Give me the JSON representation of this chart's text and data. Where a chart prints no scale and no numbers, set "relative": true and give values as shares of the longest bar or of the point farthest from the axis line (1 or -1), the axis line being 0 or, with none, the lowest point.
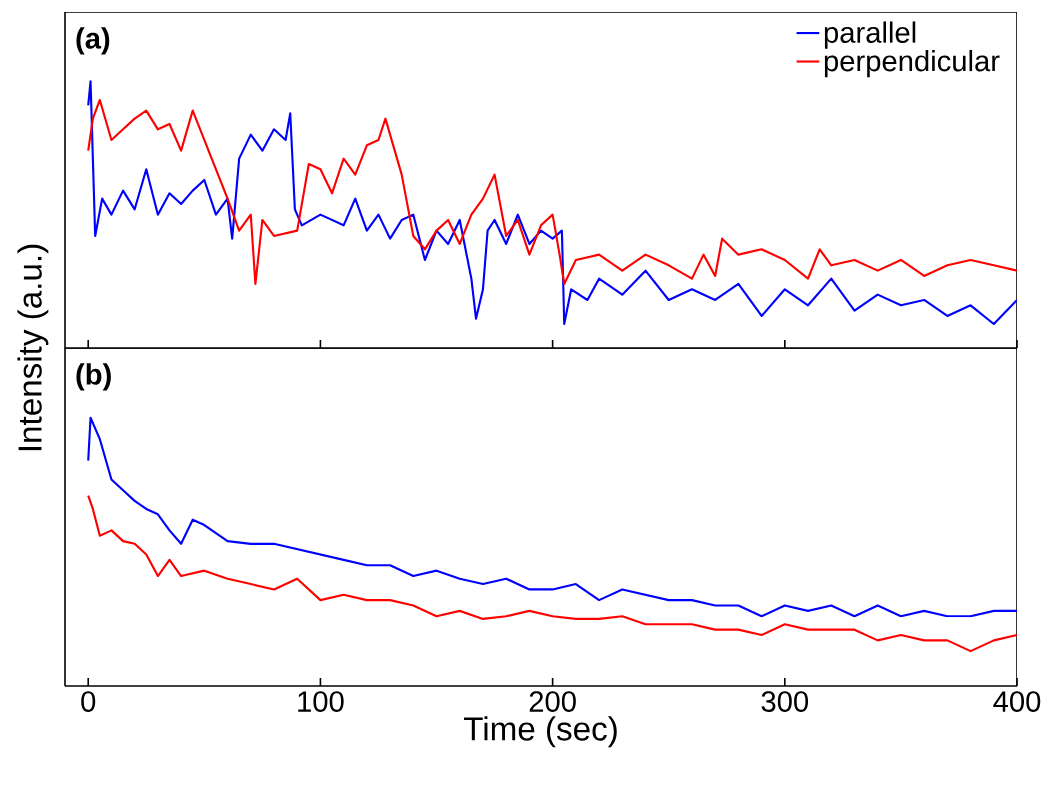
{
  "chart_data": [
    {
      "type": "line",
      "title": "(a)",
      "ylabel": "Intensity (a.u.)",
      "relative": true,
      "xlim": [
        -10,
        400
      ],
      "xticks": [
        0,
        100,
        200,
        300,
        400
      ],
      "tick_labels": false,
      "legend": "top right",
      "grid": false,
      "series": [
        {
          "name": "parallel",
          "color": "#0000ff",
          "x": [
            0,
            1,
            3,
            6,
            10,
            15,
            20,
            25,
            30,
            35,
            40,
            45,
            50,
            55,
            60,
            62,
            65,
            70,
            75,
            80,
            85,
            87,
            89,
            92,
            100,
            110,
            115,
            120,
            125,
            130,
            135,
            140,
            145,
            150,
            155,
            160,
            165,
            167,
            170,
            172,
            175,
            180,
            185,
            190,
            195,
            200,
            204,
            205,
            208,
            215,
            220,
            230,
            240,
            250,
            260,
            270,
            280,
            290,
            300,
            310,
            320,
            330,
            340,
            350,
            360,
            370,
            380,
            390,
            400
          ],
          "values": [
            0.91,
            1.0,
            0.42,
            0.56,
            0.5,
            0.59,
            0.52,
            0.67,
            0.5,
            0.58,
            0.54,
            0.59,
            0.63,
            0.5,
            0.56,
            0.41,
            0.71,
            0.8,
            0.74,
            0.82,
            0.78,
            0.88,
            0.52,
            0.46,
            0.5,
            0.46,
            0.56,
            0.44,
            0.5,
            0.41,
            0.48,
            0.5,
            0.33,
            0.44,
            0.39,
            0.48,
            0.26,
            0.11,
            0.22,
            0.44,
            0.48,
            0.39,
            0.5,
            0.39,
            0.44,
            0.41,
            0.44,
            0.09,
            0.22,
            0.18,
            0.26,
            0.2,
            0.29,
            0.18,
            0.22,
            0.18,
            0.24,
            0.12,
            0.22,
            0.16,
            0.26,
            0.14,
            0.2,
            0.16,
            0.18,
            0.12,
            0.16,
            0.09,
            0.18
          ]
        },
        {
          "name": "perpendicular",
          "color": "#ff0000",
          "x": [
            0,
            2,
            5,
            10,
            15,
            20,
            25,
            30,
            35,
            40,
            45,
            50,
            55,
            60,
            65,
            70,
            72,
            75,
            80,
            90,
            95,
            100,
            105,
            110,
            115,
            120,
            125,
            128,
            132,
            135,
            140,
            145,
            150,
            155,
            160,
            165,
            170,
            175,
            180,
            185,
            190,
            195,
            200,
            203,
            205,
            210,
            220,
            230,
            240,
            250,
            260,
            265,
            270,
            273,
            280,
            290,
            300,
            310,
            315,
            320,
            330,
            340,
            350,
            360,
            370,
            380,
            390,
            400
          ],
          "values": [
            0.74,
            0.86,
            0.93,
            0.78,
            0.82,
            0.86,
            0.89,
            0.82,
            0.84,
            0.74,
            0.89,
            0.78,
            0.67,
            0.56,
            0.44,
            0.5,
            0.24,
            0.48,
            0.42,
            0.44,
            0.69,
            0.67,
            0.58,
            0.71,
            0.65,
            0.76,
            0.78,
            0.86,
            0.74,
            0.65,
            0.42,
            0.37,
            0.44,
            0.48,
            0.39,
            0.5,
            0.56,
            0.65,
            0.42,
            0.48,
            0.35,
            0.46,
            0.5,
            0.35,
            0.24,
            0.33,
            0.35,
            0.29,
            0.35,
            0.31,
            0.26,
            0.35,
            0.27,
            0.41,
            0.35,
            0.37,
            0.33,
            0.26,
            0.37,
            0.31,
            0.33,
            0.29,
            0.33,
            0.27,
            0.31,
            0.33,
            0.31,
            0.29
          ]
        }
      ]
    },
    {
      "type": "line",
      "title": "(b)",
      "xlabel": "Time (sec)",
      "relative": true,
      "xlim": [
        -10,
        400
      ],
      "xticks": [
        0,
        100,
        200,
        300,
        400
      ],
      "tick_labels": "x",
      "grid": false,
      "series": [
        {
          "color": "#0000ff",
          "x": [
            0,
            1,
            5,
            10,
            15,
            20,
            25,
            30,
            35,
            40,
            45,
            50,
            60,
            70,
            80,
            90,
            100,
            110,
            120,
            130,
            140,
            150,
            160,
            170,
            180,
            190,
            200,
            210,
            220,
            230,
            240,
            250,
            260,
            270,
            280,
            290,
            300,
            310,
            320,
            330,
            340,
            350,
            360,
            370,
            380,
            390,
            400
          ],
          "values": [
            0.84,
            1.0,
            0.92,
            0.77,
            0.73,
            0.69,
            0.66,
            0.64,
            0.58,
            0.53,
            0.62,
            0.6,
            0.54,
            0.53,
            0.53,
            0.51,
            0.49,
            0.47,
            0.45,
            0.45,
            0.41,
            0.43,
            0.4,
            0.38,
            0.4,
            0.36,
            0.36,
            0.38,
            0.32,
            0.36,
            0.34,
            0.32,
            0.32,
            0.3,
            0.3,
            0.26,
            0.3,
            0.28,
            0.3,
            0.26,
            0.3,
            0.26,
            0.28,
            0.26,
            0.26,
            0.28,
            0.28
          ]
        },
        {
          "color": "#ff0000",
          "x": [
            0,
            2,
            5,
            10,
            15,
            20,
            25,
            30,
            35,
            40,
            50,
            60,
            70,
            80,
            90,
            100,
            110,
            120,
            130,
            140,
            150,
            160,
            170,
            180,
            190,
            200,
            210,
            220,
            230,
            240,
            250,
            260,
            270,
            280,
            290,
            300,
            310,
            320,
            330,
            340,
            350,
            360,
            370,
            380,
            390,
            400
          ],
          "values": [
            0.71,
            0.66,
            0.56,
            0.58,
            0.54,
            0.53,
            0.49,
            0.41,
            0.47,
            0.41,
            0.43,
            0.4,
            0.38,
            0.36,
            0.4,
            0.32,
            0.34,
            0.32,
            0.32,
            0.3,
            0.26,
            0.28,
            0.25,
            0.26,
            0.28,
            0.26,
            0.25,
            0.25,
            0.26,
            0.23,
            0.23,
            0.23,
            0.21,
            0.21,
            0.19,
            0.23,
            0.21,
            0.21,
            0.21,
            0.17,
            0.19,
            0.17,
            0.17,
            0.13,
            0.17,
            0.19
          ]
        }
      ]
    }
  ]
}
